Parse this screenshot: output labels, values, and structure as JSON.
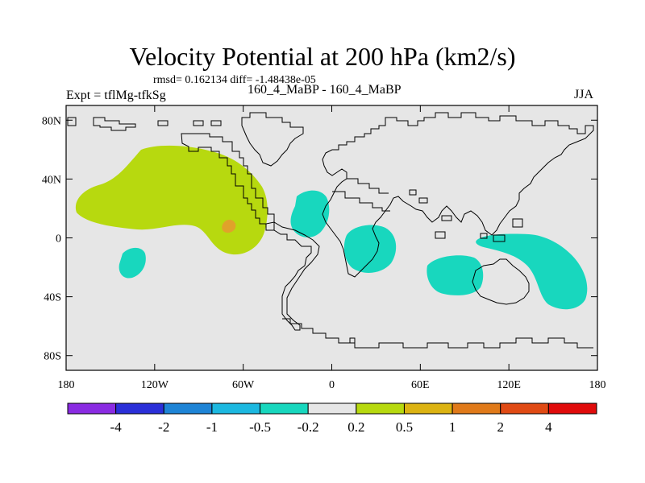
{
  "title": "Velocity Potential at 200 hPa (km2/s)",
  "stats": "rmsd= 0.162134 diff= -1.48438e-05",
  "experiment": "Expt = tflMg-tfkSg",
  "runs": "160_4_MaBP - 160_4_MaBP",
  "season": "JJA",
  "map": {
    "background_color": "#e6e6e6",
    "lat_labels": [
      "80N",
      "40N",
      "0",
      "40S",
      "80S"
    ],
    "lat_values": [
      80,
      40,
      0,
      -40,
      -80
    ],
    "lon_labels": [
      "180",
      "120W",
      "60W",
      "0",
      "60E",
      "120E",
      "180"
    ],
    "lon_values": [
      -180,
      -120,
      -60,
      0,
      60,
      120,
      180
    ],
    "lat_range": [
      -90,
      90
    ],
    "lon_range": [
      -180,
      180
    ],
    "anomalies": [
      {
        "name": "positive-anomaly-central-pacific",
        "level": "0.2 to 0.5",
        "color": "#b7d90f"
      },
      {
        "name": "positive-anomaly-core",
        "level": "0.5 to 1",
        "color": "#e0a22a"
      },
      {
        "name": "negative-anomaly-south-pacific",
        "level": "-0.5 to -0.2",
        "color": "#18d7be"
      },
      {
        "name": "negative-anomaly-east-atlantic",
        "level": "-0.5 to -0.2",
        "color": "#18d7be"
      },
      {
        "name": "negative-anomaly-central-africa",
        "level": "-0.5 to -0.2",
        "color": "#18d7be"
      },
      {
        "name": "negative-anomaly-indian-ocean",
        "level": "-0.5 to -0.2",
        "color": "#18d7be"
      },
      {
        "name": "negative-anomaly-west-pacific",
        "level": "-0.5 to -0.2",
        "color": "#18d7be"
      }
    ]
  },
  "colorbar": {
    "colors": [
      "#8a2be2",
      "#2a2fd8",
      "#1e84d6",
      "#1cb8e0",
      "#18d7be",
      "#e6e6e6",
      "#b7d90f",
      "#dcb312",
      "#e07a1a",
      "#e04a14",
      "#e00b0b"
    ],
    "labels": [
      "-4",
      "-2",
      "-1",
      "-0.5",
      "-0.2",
      "0.2",
      "0.5",
      "1",
      "2",
      "4"
    ]
  }
}
